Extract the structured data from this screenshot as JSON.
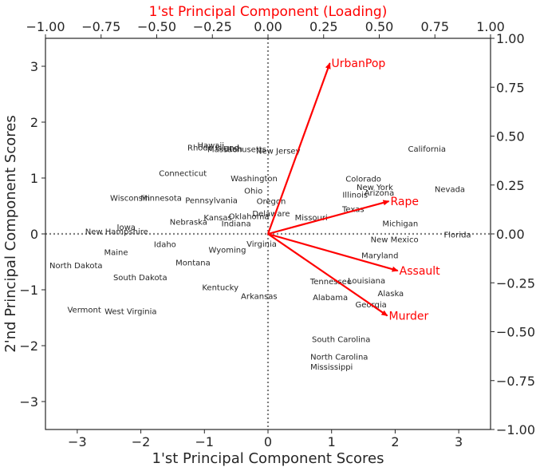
{
  "chart_data": {
    "type": "scatter",
    "title_top": "1'st Principal Component (Loading)",
    "xlabel": "1'st Principal Component Scores",
    "ylabel": "2'nd Principal Component Scores",
    "xlim": [
      -3.5,
      3.5
    ],
    "ylim": [
      -3.5,
      3.5
    ],
    "loading_lim": [
      -1.0,
      1.0
    ],
    "x_ticks": [
      -3,
      -2,
      -1,
      0,
      1,
      2,
      3
    ],
    "y_ticks": [
      -3,
      -2,
      -1,
      0,
      1,
      2,
      3
    ],
    "top_ticks": [
      "−1.00",
      "−0.75",
      "−0.50",
      "−0.25",
      "0.00",
      "0.25",
      "0.50",
      "0.75",
      "1.00"
    ],
    "right_ticks": [
      "1.00",
      "0.75",
      "0.50",
      "0.25",
      "0.00",
      "−0.25",
      "−0.50",
      "−0.75",
      "−1.00"
    ],
    "grid": false,
    "reference_lines": "dotted lines at x=0 and y=0",
    "arrow_color": "#ff0000",
    "scores": [
      {
        "name": "Alabama",
        "x": 0.98,
        "y": -1.13
      },
      {
        "name": "Alaska",
        "x": 1.93,
        "y": -1.06
      },
      {
        "name": "Arizona",
        "x": 1.75,
        "y": 0.74
      },
      {
        "name": "Arkansas",
        "x": -0.14,
        "y": -1.11
      },
      {
        "name": "California",
        "x": 2.5,
        "y": 1.53
      },
      {
        "name": "Colorado",
        "x": 1.5,
        "y": 0.99
      },
      {
        "name": "Connecticut",
        "x": -1.34,
        "y": 1.09
      },
      {
        "name": "Delaware",
        "x": 0.05,
        "y": 0.37
      },
      {
        "name": "Florida",
        "x": 2.98,
        "y": -0.01
      },
      {
        "name": "Georgia",
        "x": 1.62,
        "y": -1.26
      },
      {
        "name": "Hawaii",
        "x": -0.9,
        "y": 1.59
      },
      {
        "name": "Idaho",
        "x": -1.62,
        "y": -0.18
      },
      {
        "name": "Illinois",
        "x": 1.37,
        "y": 0.71
      },
      {
        "name": "Indiana",
        "x": -0.5,
        "y": 0.19
      },
      {
        "name": "Iowa",
        "x": -2.23,
        "y": 0.13
      },
      {
        "name": "Kansas",
        "x": -0.79,
        "y": 0.3
      },
      {
        "name": "Kentucky",
        "x": -0.75,
        "y": -0.95
      },
      {
        "name": "Louisiana",
        "x": 1.55,
        "y": -0.83
      },
      {
        "name": "Maine",
        "x": -2.39,
        "y": -0.32
      },
      {
        "name": "Maryland",
        "x": 1.76,
        "y": -0.38
      },
      {
        "name": "Massachusetts",
        "x": -0.49,
        "y": 1.52
      },
      {
        "name": "Michigan",
        "x": 2.08,
        "y": 0.19
      },
      {
        "name": "Minnesota",
        "x": -1.68,
        "y": 0.65
      },
      {
        "name": "Mississippi",
        "x": 1.0,
        "y": -2.37
      },
      {
        "name": "Missouri",
        "x": 0.68,
        "y": 0.3
      },
      {
        "name": "Montana",
        "x": -1.18,
        "y": -0.51
      },
      {
        "name": "Nebraska",
        "x": -1.25,
        "y": 0.22
      },
      {
        "name": "Nevada",
        "x": 2.86,
        "y": 0.81
      },
      {
        "name": "New Hampshire",
        "x": -2.38,
        "y": 0.05
      },
      {
        "name": "New Jersey",
        "x": 0.16,
        "y": 1.49
      },
      {
        "name": "New Mexico",
        "x": 1.99,
        "y": -0.09
      },
      {
        "name": "New York",
        "x": 1.68,
        "y": 0.84
      },
      {
        "name": "North Carolina",
        "x": 1.12,
        "y": -2.19
      },
      {
        "name": "North Dakota",
        "x": -3.02,
        "y": -0.56
      },
      {
        "name": "Ohio",
        "x": -0.23,
        "y": 0.78
      },
      {
        "name": "Oklahoma",
        "x": -0.3,
        "y": 0.32
      },
      {
        "name": "Oregon",
        "x": 0.05,
        "y": 0.59
      },
      {
        "name": "Pennsylvania",
        "x": -0.89,
        "y": 0.61
      },
      {
        "name": "Rhode Island",
        "x": -0.86,
        "y": 1.55
      },
      {
        "name": "South Carolina",
        "x": 1.15,
        "y": -1.88
      },
      {
        "name": "South Dakota",
        "x": -2.01,
        "y": -0.77
      },
      {
        "name": "Tennessee",
        "x": 0.99,
        "y": -0.84
      },
      {
        "name": "Texas",
        "x": 1.34,
        "y": 0.45
      },
      {
        "name": "Utah",
        "x": -0.55,
        "y": 1.53
      },
      {
        "name": "Vermont",
        "x": -2.89,
        "y": -1.35
      },
      {
        "name": "Virginia",
        "x": -0.1,
        "y": -0.17
      },
      {
        "name": "Washington",
        "x": -0.22,
        "y": 1.0
      },
      {
        "name": "West Virginia",
        "x": -2.16,
        "y": -1.38
      },
      {
        "name": "Wisconsin",
        "x": -2.17,
        "y": 0.65
      },
      {
        "name": "Wyoming",
        "x": -0.64,
        "y": -0.28
      }
    ],
    "loadings": [
      {
        "name": "Murder",
        "x": 0.536,
        "y": -0.418
      },
      {
        "name": "Assault",
        "x": 0.583,
        "y": -0.188
      },
      {
        "name": "UrbanPop",
        "x": 0.278,
        "y": 0.873
      },
      {
        "name": "Rape",
        "x": 0.543,
        "y": 0.167
      }
    ]
  }
}
